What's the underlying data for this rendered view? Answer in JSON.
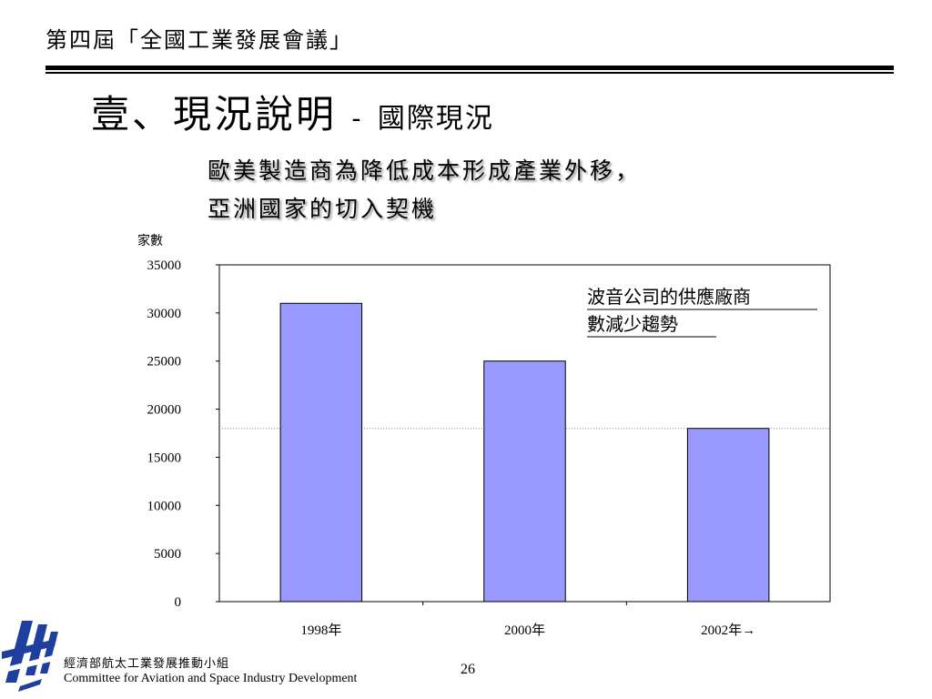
{
  "header": {
    "conference_title": "第四屆「全國工業發展會議」",
    "heading_main": "壹、現況說明",
    "heading_sep": "-",
    "heading_sub": "國際現況",
    "subtitle_line1": "歐美製造商為降低成本形成產業外移，",
    "subtitle_line2": "亞洲國家的切入契機"
  },
  "chart_data": {
    "type": "bar",
    "ylabel": "家數",
    "categories": [
      "1998年",
      "2000年",
      "2002年→"
    ],
    "values": [
      31000,
      25000,
      18000
    ],
    "ylim": [
      0,
      35000
    ],
    "yticks": [
      "0",
      "5000",
      "10000",
      "15000",
      "20000",
      "25000",
      "30000",
      "35000"
    ],
    "bar_color": "#9999ff",
    "reference_line": 18000,
    "annotation": [
      "波音公司的供應廠商",
      "數減少趨勢"
    ]
  },
  "footer": {
    "org_cn": "經濟部航太工業發展推動小組",
    "org_en": "Committee for Aviation and Space Industry Development",
    "page_number": "26"
  }
}
